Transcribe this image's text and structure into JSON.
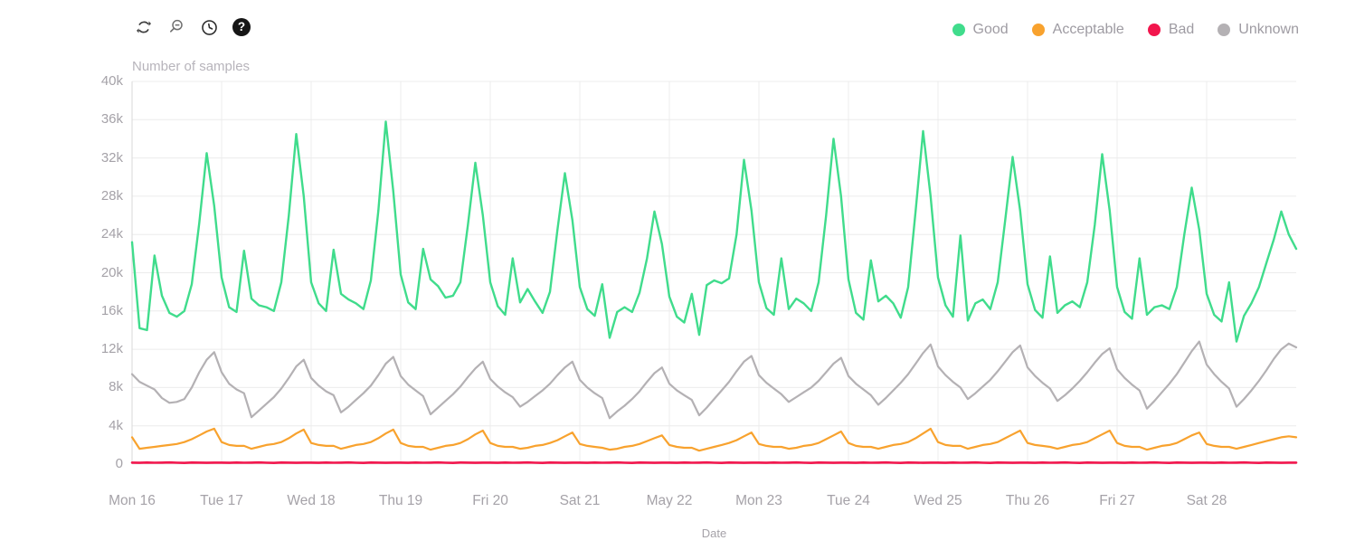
{
  "toolbar": {
    "icons": [
      {
        "name": "refresh-icon"
      },
      {
        "name": "zoom-out-icon"
      },
      {
        "name": "history-clock-icon"
      },
      {
        "name": "help-icon",
        "glyph": "?"
      }
    ]
  },
  "legend": {
    "position": "top-right",
    "items": [
      {
        "label": "Good",
        "color": "#40dc8c"
      },
      {
        "label": "Acceptable",
        "color": "#f8a22e"
      },
      {
        "label": "Bad",
        "color": "#f2164d"
      },
      {
        "label": "Unknown",
        "color": "#b4b1b4"
      }
    ]
  },
  "chart_data": {
    "type": "line",
    "title": "Number of samples",
    "xlabel": "Date",
    "ylabel": "Number of samples",
    "grid": true,
    "legend_position": "top-right",
    "x_tick_labels": [
      "Mon 16",
      "Tue 17",
      "Wed 18",
      "Thu 19",
      "Fri 20",
      "Sat 21",
      "May 22",
      "Mon 23",
      "Tue 24",
      "Wed 25",
      "Thu 26",
      "Fri 27",
      "Sat 28"
    ],
    "y_ticks": [
      "40k",
      "36k",
      "32k",
      "28k",
      "24k",
      "20k",
      "16k",
      "12k",
      "8k",
      "4k",
      "0"
    ],
    "ylim": [
      0,
      40
    ],
    "y_unit": "thousands of samples",
    "x_start": "Mon May 16 00:00",
    "x_step_hours": 2,
    "x_total_hours": 312,
    "series": [
      {
        "name": "Good",
        "color": "#40dc8c",
        "values": [
          23.2,
          14.2,
          14.0,
          21.8,
          17.6,
          15.8,
          15.4,
          16.0,
          18.8,
          25.2,
          32.5,
          27.0,
          19.5,
          16.4,
          15.9,
          22.3,
          17.3,
          16.6,
          16.4,
          16.0,
          19.0,
          26.0,
          34.5,
          28.0,
          19.0,
          16.8,
          16.0,
          22.4,
          17.8,
          17.2,
          16.8,
          16.2,
          19.2,
          26.5,
          35.8,
          28.5,
          19.8,
          16.9,
          16.2,
          22.5,
          19.3,
          18.6,
          17.4,
          17.6,
          19.0,
          25.0,
          31.5,
          26.0,
          19.0,
          16.5,
          15.6,
          21.5,
          16.9,
          18.3,
          17.0,
          15.8,
          18.0,
          24.5,
          30.4,
          25.5,
          18.5,
          16.2,
          15.5,
          18.8,
          13.2,
          15.9,
          16.4,
          15.9,
          17.9,
          21.5,
          26.4,
          23.0,
          17.5,
          15.4,
          14.8,
          17.8,
          13.5,
          18.7,
          19.2,
          18.9,
          19.4,
          24.0,
          31.8,
          26.5,
          19.0,
          16.3,
          15.6,
          21.5,
          16.2,
          17.3,
          16.8,
          16.0,
          19.0,
          26.0,
          34.0,
          28.0,
          19.3,
          15.8,
          15.1,
          21.3,
          17.0,
          17.6,
          16.8,
          15.3,
          18.5,
          26.5,
          34.8,
          28.0,
          19.5,
          16.6,
          15.4,
          23.9,
          15.0,
          16.8,
          17.2,
          16.2,
          19.0,
          25.5,
          32.1,
          26.5,
          18.8,
          16.1,
          15.3,
          21.7,
          15.8,
          16.6,
          17.0,
          16.4,
          19.0,
          25.0,
          32.4,
          26.5,
          18.5,
          15.9,
          15.2,
          21.5,
          15.6,
          16.4,
          16.6,
          16.2,
          18.5,
          24.0,
          28.9,
          24.5,
          17.8,
          15.6,
          14.9,
          19.0,
          12.8,
          15.5,
          16.8,
          18.5,
          21.0,
          23.5,
          26.4,
          24.0,
          22.5
        ]
      },
      {
        "name": "Acceptable",
        "color": "#f8a22e",
        "values": [
          2.8,
          1.6,
          1.7,
          1.8,
          1.9,
          2.0,
          2.1,
          2.3,
          2.6,
          3.0,
          3.4,
          3.7,
          2.3,
          2.0,
          1.9,
          1.9,
          1.6,
          1.8,
          2.0,
          2.1,
          2.3,
          2.7,
          3.2,
          3.6,
          2.2,
          2.0,
          1.9,
          1.9,
          1.6,
          1.8,
          2.0,
          2.1,
          2.3,
          2.7,
          3.2,
          3.6,
          2.2,
          1.9,
          1.8,
          1.8,
          1.5,
          1.7,
          1.9,
          2.0,
          2.2,
          2.6,
          3.1,
          3.5,
          2.2,
          1.9,
          1.8,
          1.8,
          1.6,
          1.7,
          1.9,
          2.0,
          2.2,
          2.5,
          2.9,
          3.3,
          2.1,
          1.9,
          1.8,
          1.7,
          1.5,
          1.6,
          1.8,
          1.9,
          2.1,
          2.4,
          2.7,
          3.0,
          2.0,
          1.8,
          1.7,
          1.7,
          1.4,
          1.6,
          1.8,
          2.0,
          2.2,
          2.5,
          2.9,
          3.3,
          2.1,
          1.9,
          1.8,
          1.8,
          1.6,
          1.7,
          1.9,
          2.0,
          2.2,
          2.6,
          3.0,
          3.4,
          2.2,
          1.9,
          1.8,
          1.8,
          1.6,
          1.8,
          2.0,
          2.1,
          2.3,
          2.7,
          3.2,
          3.7,
          2.3,
          2.0,
          1.9,
          1.9,
          1.6,
          1.8,
          2.0,
          2.1,
          2.3,
          2.7,
          3.1,
          3.5,
          2.2,
          2.0,
          1.9,
          1.8,
          1.6,
          1.8,
          2.0,
          2.1,
          2.3,
          2.7,
          3.1,
          3.5,
          2.2,
          1.9,
          1.8,
          1.8,
          1.5,
          1.7,
          1.9,
          2.0,
          2.2,
          2.6,
          3.0,
          3.3,
          2.1,
          1.9,
          1.8,
          1.8,
          1.6,
          1.8,
          2.0,
          2.2,
          2.4,
          2.6,
          2.8,
          2.9,
          2.8
        ]
      },
      {
        "name": "Bad",
        "color": "#f2164d",
        "values": [
          0.15,
          0.13,
          0.16,
          0.14,
          0.15,
          0.17,
          0.14,
          0.12,
          0.16,
          0.15,
          0.13,
          0.15,
          0.15,
          0.13,
          0.16,
          0.14,
          0.15,
          0.17,
          0.14,
          0.12,
          0.16,
          0.15,
          0.13,
          0.15,
          0.15,
          0.13,
          0.16,
          0.14,
          0.15,
          0.17,
          0.14,
          0.12,
          0.16,
          0.15,
          0.13,
          0.15,
          0.15,
          0.13,
          0.16,
          0.14,
          0.15,
          0.17,
          0.14,
          0.12,
          0.16,
          0.15,
          0.13,
          0.15,
          0.15,
          0.13,
          0.16,
          0.14,
          0.15,
          0.17,
          0.14,
          0.12,
          0.16,
          0.15,
          0.13,
          0.15,
          0.15,
          0.13,
          0.16,
          0.14,
          0.15,
          0.17,
          0.14,
          0.12,
          0.16,
          0.15,
          0.13,
          0.15,
          0.15,
          0.13,
          0.16,
          0.14,
          0.15,
          0.17,
          0.14,
          0.12,
          0.16,
          0.15,
          0.13,
          0.15,
          0.15,
          0.13,
          0.16,
          0.14,
          0.15,
          0.17,
          0.14,
          0.12,
          0.16,
          0.15,
          0.13,
          0.15,
          0.15,
          0.13,
          0.16,
          0.14,
          0.15,
          0.17,
          0.14,
          0.12,
          0.16,
          0.15,
          0.13,
          0.15,
          0.15,
          0.13,
          0.16,
          0.14,
          0.15,
          0.17,
          0.14,
          0.12,
          0.16,
          0.15,
          0.13,
          0.15,
          0.15,
          0.13,
          0.16,
          0.14,
          0.15,
          0.17,
          0.14,
          0.12,
          0.16,
          0.15,
          0.13,
          0.15,
          0.15,
          0.13,
          0.16,
          0.14,
          0.15,
          0.17,
          0.14,
          0.12,
          0.16,
          0.15,
          0.13,
          0.15,
          0.15,
          0.13,
          0.16,
          0.14,
          0.15,
          0.17,
          0.14,
          0.12,
          0.16,
          0.15,
          0.13,
          0.15,
          0.15
        ]
      },
      {
        "name": "Unknown",
        "color": "#b4b1b4",
        "values": [
          9.4,
          8.6,
          8.2,
          7.8,
          6.9,
          6.4,
          6.5,
          6.8,
          8.0,
          9.6,
          10.9,
          11.7,
          9.6,
          8.4,
          7.8,
          7.4,
          4.9,
          5.6,
          6.3,
          7.0,
          7.9,
          9.0,
          10.2,
          10.9,
          9.0,
          8.2,
          7.6,
          7.2,
          5.4,
          6.0,
          6.7,
          7.4,
          8.2,
          9.3,
          10.5,
          11.2,
          9.2,
          8.3,
          7.7,
          7.1,
          5.2,
          5.9,
          6.6,
          7.3,
          8.1,
          9.1,
          10.0,
          10.7,
          8.9,
          8.1,
          7.5,
          7.0,
          6.0,
          6.5,
          7.1,
          7.7,
          8.4,
          9.3,
          10.1,
          10.7,
          8.8,
          8.0,
          7.4,
          6.9,
          4.8,
          5.5,
          6.1,
          6.8,
          7.6,
          8.6,
          9.5,
          10.1,
          8.4,
          7.7,
          7.2,
          6.7,
          5.1,
          5.9,
          6.8,
          7.7,
          8.6,
          9.7,
          10.7,
          11.3,
          9.3,
          8.5,
          7.9,
          7.3,
          6.5,
          7.0,
          7.5,
          8.0,
          8.7,
          9.6,
          10.5,
          11.1,
          9.2,
          8.4,
          7.8,
          7.2,
          6.2,
          6.9,
          7.7,
          8.5,
          9.4,
          10.5,
          11.6,
          12.5,
          10.2,
          9.3,
          8.6,
          8.0,
          6.8,
          7.4,
          8.1,
          8.8,
          9.7,
          10.7,
          11.7,
          12.4,
          10.1,
          9.2,
          8.5,
          7.9,
          6.6,
          7.2,
          7.9,
          8.7,
          9.6,
          10.6,
          11.5,
          12.1,
          9.9,
          9.0,
          8.3,
          7.7,
          5.8,
          6.6,
          7.5,
          8.4,
          9.4,
          10.6,
          11.8,
          12.8,
          10.4,
          9.4,
          8.6,
          7.9,
          6.0,
          6.8,
          7.7,
          8.7,
          9.8,
          11.0,
          12.0,
          12.6,
          12.2
        ]
      }
    ]
  }
}
